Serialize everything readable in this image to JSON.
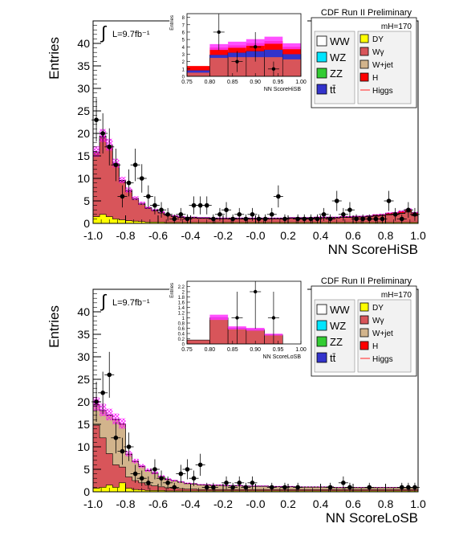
{
  "chart_data": [
    {
      "type": "bar",
      "title": "CDF Run II Preliminary",
      "xlabel": "NN ScoreHiSB",
      "ylabel": "Entries",
      "xlim": [
        -1.0,
        1.0
      ],
      "ylim": [
        0,
        45
      ],
      "grid": false,
      "legend_position": "top-right",
      "luminosity": "L=9.7fb⁻¹",
      "mass_label": "mH=170",
      "x_ticks": [
        "-1.0",
        "-0.8",
        "-0.6",
        "-0.4",
        "-0.2",
        "-0.0",
        "0.2",
        "0.4",
        "0.6",
        "0.8",
        "1.0"
      ],
      "y_ticks": [
        "0",
        "5",
        "10",
        "15",
        "20",
        "25",
        "30",
        "35",
        "40"
      ],
      "bin_edges": [
        -1.0,
        -0.96,
        -0.92,
        -0.88,
        -0.84,
        -0.8,
        -0.76,
        -0.72,
        -0.68,
        -0.64,
        -0.6,
        -0.56,
        -0.52,
        -0.48,
        -0.44,
        -0.4,
        -0.36,
        -0.32,
        -0.28,
        -0.24,
        -0.2,
        -0.16,
        -0.12,
        -0.08,
        -0.04,
        0.0,
        0.04,
        0.08,
        0.12,
        0.16,
        0.2,
        0.24,
        0.28,
        0.32,
        0.36,
        0.4,
        0.44,
        0.48,
        0.52,
        0.56,
        0.6,
        0.64,
        0.68,
        0.72,
        0.76,
        0.8,
        0.84,
        0.88,
        0.92,
        0.96,
        1.0
      ],
      "stack": [
        {
          "name": "DY",
          "color": "#ffff00",
          "values": [
            1.5,
            2.0,
            1.5,
            1.0,
            0.8,
            0.6,
            0.5,
            0.4,
            0.3,
            0.3,
            0.3,
            0.2,
            0.2,
            0.2,
            0.2,
            0.2,
            0.2,
            0.2,
            0.2,
            0.2,
            0.2,
            0.2,
            0.2,
            0.2,
            0.2,
            0.2,
            0.2,
            0.2,
            0.2,
            0.2,
            0.2,
            0.2,
            0.2,
            0.2,
            0.2,
            0.2,
            0.2,
            0.2,
            0.2,
            0.2,
            0.2,
            0.2,
            0.2,
            0.2,
            0.2,
            0.2,
            0.2,
            0.2,
            0.2,
            0.2
          ]
        },
        {
          "name": "Wγ",
          "color": "#d8555a",
          "values": [
            14.0,
            17.0,
            15.5,
            12.0,
            8.5,
            6.5,
            4.8,
            3.8,
            3.0,
            2.5,
            2.0,
            1.6,
            1.3,
            1.1,
            1.0,
            1.0,
            0.9,
            0.9,
            0.8,
            0.8,
            0.8,
            0.8,
            0.8,
            0.8,
            0.8,
            0.8,
            0.8,
            0.8,
            0.8,
            0.8,
            0.9,
            0.9,
            0.9,
            0.9,
            1.0,
            1.0,
            1.0,
            1.0,
            1.1,
            1.1,
            1.2,
            1.2,
            1.3,
            1.4,
            1.5,
            1.7,
            1.8,
            2.0,
            2.3,
            1.5
          ]
        },
        {
          "name": "W+jet",
          "color": "#d2b48c",
          "values": [
            0.3,
            0.3,
            0.3,
            0.2,
            0.2,
            0.2,
            0.2,
            0.2,
            0.1,
            0.1,
            0.1,
            0.1,
            0.1,
            0.1,
            0.1,
            0.1,
            0.1,
            0.1,
            0.1,
            0.1,
            0.1,
            0.1,
            0.1,
            0.1,
            0.1,
            0.1,
            0.1,
            0.1,
            0.1,
            0.1,
            0.1,
            0.1,
            0.1,
            0.1,
            0.1,
            0.1,
            0.1,
            0.1,
            0.1,
            0.1,
            0.1,
            0.1,
            0.1,
            0.1,
            0.1,
            0.1,
            0.1,
            0.1,
            0.1,
            0.1
          ]
        },
        {
          "name": "H",
          "color": "#ff0000",
          "values": [
            0.1,
            0.1,
            0.1,
            0.1,
            0.1,
            0.1,
            0.1,
            0.1,
            0.1,
            0.1,
            0.1,
            0.1,
            0.1,
            0.1,
            0.1,
            0.1,
            0.1,
            0.1,
            0.1,
            0.1,
            0.1,
            0.1,
            0.1,
            0.1,
            0.1,
            0.1,
            0.1,
            0.1,
            0.1,
            0.1,
            0.1,
            0.1,
            0.1,
            0.1,
            0.1,
            0.1,
            0.1,
            0.1,
            0.1,
            0.1,
            0.1,
            0.1,
            0.1,
            0.2,
            0.2,
            0.3,
            0.3,
            0.4,
            0.5,
            0.6
          ]
        }
      ],
      "data_points": {
        "name": "Data",
        "x": [
          -0.98,
          -0.94,
          -0.9,
          -0.86,
          -0.82,
          -0.78,
          -0.74,
          -0.7,
          -0.66,
          -0.62,
          -0.58,
          -0.54,
          -0.5,
          -0.46,
          -0.42,
          -0.38,
          -0.34,
          -0.3,
          -0.26,
          -0.22,
          -0.18,
          -0.14,
          -0.1,
          -0.06,
          -0.02,
          0.02,
          0.06,
          0.1,
          0.14,
          0.18,
          0.22,
          0.26,
          0.3,
          0.34,
          0.38,
          0.42,
          0.46,
          0.5,
          0.54,
          0.58,
          0.62,
          0.66,
          0.7,
          0.74,
          0.78,
          0.82,
          0.86,
          0.9,
          0.94,
          0.98
        ],
        "y": [
          23,
          20,
          17,
          13,
          6,
          9,
          13,
          10,
          6,
          4,
          3,
          2,
          1,
          2,
          1,
          4,
          4,
          4,
          1,
          2,
          3,
          1,
          2,
          1,
          2,
          1,
          1,
          2,
          6,
          1,
          0,
          1,
          1,
          1,
          1,
          2,
          1,
          5,
          2,
          3,
          1,
          1,
          1,
          1,
          1,
          5,
          2,
          1,
          3,
          2
        ]
      }
    },
    {
      "type": "bar",
      "title": "CDF Run II Preliminary",
      "xlabel": "NN ScoreLoSB",
      "ylabel": "Entries",
      "xlim": [
        -1.0,
        1.0
      ],
      "ylim": [
        0,
        45
      ],
      "grid": false,
      "legend_position": "top-right",
      "luminosity": "L=9.7fb⁻¹",
      "mass_label": "mH=170",
      "x_ticks": [
        "-1.0",
        "-0.8",
        "-0.6",
        "-0.4",
        "-0.2",
        "-0.0",
        "0.2",
        "0.4",
        "0.6",
        "0.8",
        "1.0"
      ],
      "y_ticks": [
        "0",
        "5",
        "10",
        "15",
        "20",
        "25",
        "30",
        "35",
        "40"
      ],
      "bin_edges": [
        -1.0,
        -0.96,
        -0.92,
        -0.88,
        -0.84,
        -0.8,
        -0.76,
        -0.72,
        -0.68,
        -0.64,
        -0.6,
        -0.56,
        -0.52,
        -0.48,
        -0.44,
        -0.4,
        -0.36,
        -0.32,
        -0.28,
        -0.24,
        -0.2,
        -0.16,
        -0.12,
        -0.08,
        -0.04,
        0.0,
        0.04,
        0.08,
        0.12,
        0.16,
        0.2,
        0.24,
        0.28,
        0.32,
        0.36,
        0.4,
        0.44,
        0.48,
        0.52,
        0.56,
        0.6,
        0.64,
        0.68,
        0.72,
        0.76,
        0.8,
        0.84,
        0.88,
        0.92,
        0.96,
        1.0
      ],
      "stack": [
        {
          "name": "DY",
          "color": "#ffff00",
          "values": [
            0.8,
            1.0,
            1.5,
            1.0,
            2.0,
            0.8,
            0.5,
            0.4,
            0.3,
            0.3,
            0.3,
            0.2,
            0.2,
            0.2,
            0.2,
            0.2,
            0.2,
            0.2,
            0.2,
            0.2,
            0.2,
            0.2,
            0.2,
            0.2,
            0.2,
            0.2,
            0.2,
            0.2,
            0.2,
            0.2,
            0.2,
            0.2,
            0.2,
            0.2,
            0.2,
            0.2,
            0.2,
            0.2,
            0.2,
            0.2,
            0.2,
            0.2,
            0.2,
            0.2,
            0.2,
            0.2,
            0.2,
            0.2,
            0.2,
            0.2
          ]
        },
        {
          "name": "Wγ",
          "color": "#d8555a",
          "values": [
            14.0,
            11.0,
            7.0,
            5.0,
            3.5,
            2.5,
            2.0,
            1.6,
            1.2,
            1.0,
            0.8,
            0.7,
            0.6,
            0.5,
            0.4,
            0.4,
            0.3,
            0.3,
            0.3,
            0.3,
            0.3,
            0.3,
            0.3,
            0.3,
            0.3,
            0.3,
            0.3,
            0.3,
            0.3,
            0.3,
            0.3,
            0.3,
            0.3,
            0.3,
            0.3,
            0.3,
            0.3,
            0.3,
            0.3,
            0.3,
            0.3,
            0.3,
            0.3,
            0.3,
            0.3,
            0.3,
            0.3,
            0.3,
            0.3,
            0.3
          ]
        },
        {
          "name": "W+jet",
          "color": "#d2b48c",
          "values": [
            4.5,
            6.0,
            8.5,
            10.0,
            9.5,
            5.0,
            4.2,
            3.6,
            3.2,
            2.8,
            2.2,
            1.8,
            1.6,
            1.4,
            1.2,
            1.1,
            1.0,
            1.0,
            0.9,
            0.9,
            0.8,
            0.8,
            0.8,
            0.7,
            0.7,
            0.7,
            0.7,
            0.6,
            0.6,
            0.6,
            0.6,
            0.5,
            0.5,
            0.5,
            0.5,
            0.5,
            0.5,
            0.4,
            0.4,
            0.4,
            0.4,
            0.4,
            0.4,
            0.4,
            0.4,
            0.4,
            0.4,
            0.4,
            0.4,
            0.4
          ]
        },
        {
          "name": "H",
          "color": "#ff0000",
          "values": [
            0.1,
            0.1,
            0.1,
            0.1,
            0.1,
            0.1,
            0.1,
            0.1,
            0.1,
            0.1,
            0.1,
            0.1,
            0.1,
            0.1,
            0.1,
            0.1,
            0.1,
            0.1,
            0.1,
            0.1,
            0.1,
            0.1,
            0.1,
            0.1,
            0.1,
            0.1,
            0.1,
            0.1,
            0.1,
            0.1,
            0.1,
            0.1,
            0.1,
            0.1,
            0.1,
            0.1,
            0.1,
            0.1,
            0.1,
            0.1,
            0.1,
            0.1,
            0.1,
            0.1,
            0.1,
            0.1,
            0.1,
            0.1,
            0.1,
            0.1
          ]
        }
      ],
      "data_points": {
        "name": "Data",
        "x": [
          -0.98,
          -0.94,
          -0.9,
          -0.86,
          -0.82,
          -0.78,
          -0.74,
          -0.7,
          -0.66,
          -0.62,
          -0.58,
          -0.54,
          -0.5,
          -0.46,
          -0.42,
          -0.38,
          -0.34,
          -0.3,
          -0.26,
          -0.22,
          -0.18,
          -0.14,
          -0.1,
          -0.06,
          -0.02,
          0.02,
          0.06,
          0.1,
          0.14,
          0.18,
          0.22,
          0.26,
          0.3,
          0.34,
          0.38,
          0.42,
          0.46,
          0.5,
          0.54,
          0.58,
          0.62,
          0.66,
          0.7,
          0.74,
          0.78,
          0.82,
          0.86,
          0.9,
          0.94,
          0.98
        ],
        "y": [
          20,
          22,
          26,
          12,
          9,
          10,
          4,
          3,
          2,
          5,
          3,
          2,
          1,
          4,
          5,
          3,
          6,
          1,
          1,
          0,
          2,
          1,
          2,
          1,
          2,
          0,
          0,
          1,
          0,
          1,
          0,
          1,
          0,
          0,
          0,
          0,
          1,
          0,
          2,
          1,
          0,
          0,
          1,
          0,
          0,
          0,
          0,
          1,
          1,
          1
        ]
      }
    }
  ],
  "insets": [
    {
      "xlabel": "NN ScoreHiSB",
      "ylabel": "Entries",
      "xlim": [
        0.75,
        1.0
      ],
      "ylim": [
        0,
        8.5
      ],
      "x_ticks": [
        "0.75",
        "0.80",
        "0.85",
        "0.90",
        "0.95",
        "1.00"
      ],
      "y_ticks": [
        "0",
        "1",
        "2",
        "3",
        "4",
        "5",
        "6",
        "7",
        "8"
      ],
      "bin_edges": [
        0.75,
        0.8,
        0.84,
        0.88,
        0.92,
        0.96,
        1.0
      ],
      "stack_totals": [
        0.8,
        2.9,
        3.2,
        3.4,
        3.6,
        3.0
      ],
      "red_band": [
        0.6,
        1.0,
        1.0,
        1.1,
        1.2,
        1.0
      ],
      "blue_band": [
        0.3,
        0.4,
        0.6,
        0.8,
        1.0,
        0.7
      ],
      "data": {
        "x": [
          0.82,
          0.86,
          0.9,
          0.94
        ],
        "y": [
          6,
          2,
          4,
          1
        ]
      }
    },
    {
      "xlabel": "NN ScoreLoSB",
      "ylabel": "Entries",
      "xlim": [
        0.75,
        1.0
      ],
      "ylim": [
        0,
        2.4
      ],
      "x_ticks": [
        "0.75",
        "0.80",
        "0.85",
        "0.90",
        "0.95",
        "1.00"
      ],
      "y_ticks": [
        "0",
        "0.2",
        "0.4",
        "0.6",
        "0.8",
        "1",
        "1.2",
        "1.4",
        "1.6",
        "1.8",
        "2",
        "2.2"
      ],
      "bin_edges": [
        0.75,
        0.8,
        0.84,
        0.88,
        0.92,
        0.96,
        1.0
      ],
      "stack_totals": [
        0.15,
        1.0,
        0.6,
        0.55,
        0.35,
        0.0
      ],
      "red_band": [
        0.0,
        0.0,
        0.0,
        0.0,
        0.0,
        0.0
      ],
      "blue_band": [
        0.0,
        0.0,
        0.0,
        0.0,
        0.0,
        0.0
      ],
      "data": {
        "x": [
          0.86,
          0.9,
          0.94
        ],
        "y": [
          1,
          2,
          1
        ]
      }
    }
  ],
  "legend": {
    "left": [
      {
        "label": "WW",
        "color": "#ffffff"
      },
      {
        "label": "WZ",
        "color": "#00e5ff"
      },
      {
        "label": "ZZ",
        "color": "#33cc33"
      },
      {
        "label": "tt̄",
        "color": "#3333cc"
      }
    ],
    "right": [
      {
        "label": "DY",
        "color": "#ffff00"
      },
      {
        "label": "Wγ",
        "color": "#d8555a"
      },
      {
        "label": "W+jet",
        "color": "#d2b48c"
      },
      {
        "label": "H",
        "color": "#ff0000"
      },
      {
        "label": "Higgs",
        "color": "#ff6666"
      }
    ]
  },
  "colors": {
    "higgs_band": "#ff33ff",
    "uncertainty_hatch": "#ff00ff",
    "data": "#000000"
  }
}
